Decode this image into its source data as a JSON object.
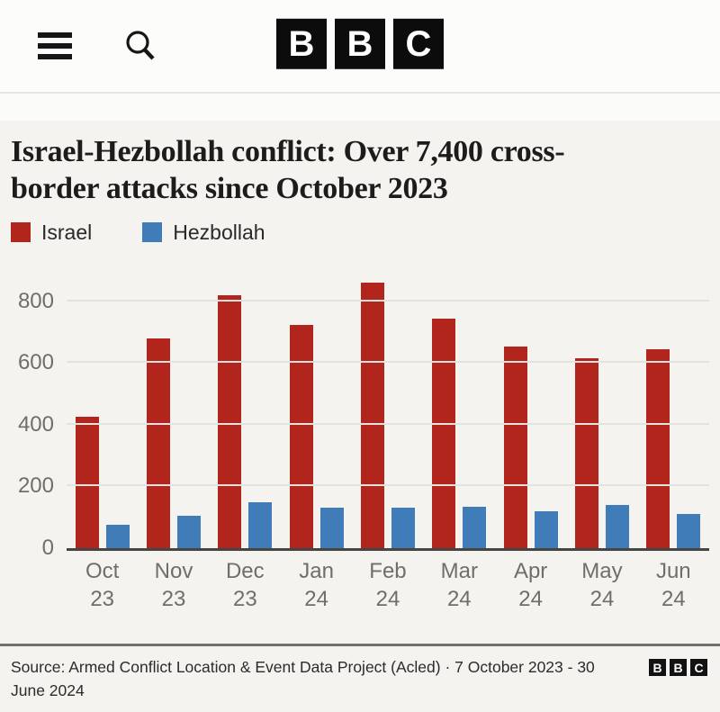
{
  "header": {
    "menu_icon": "hamburger-menu",
    "search_icon": "search-magnifier",
    "logo_letters": [
      "B",
      "B",
      "C"
    ]
  },
  "article": {
    "title": "Israel-Hezbollah conflict: Over 7,400 cross-border attacks since October 2023"
  },
  "legend": [
    {
      "label": "Israel",
      "color": "#b2251d"
    },
    {
      "label": "Hezbollah",
      "color": "#3f7cb8"
    }
  ],
  "chart_data": {
    "type": "bar",
    "title": "Israel-Hezbollah conflict: Over 7,400 cross-border attacks since October 2023",
    "categories": [
      "Oct 23",
      "Nov 23",
      "Dec 23",
      "Jan 24",
      "Feb 24",
      "Mar 24",
      "Apr 24",
      "May 24",
      "Jun 24"
    ],
    "series": [
      {
        "name": "Israel",
        "color": "#b2251d",
        "values": [
          425,
          680,
          820,
          725,
          860,
          745,
          655,
          615,
          645
        ]
      },
      {
        "name": "Hezbollah",
        "color": "#3f7cb8",
        "values": [
          75,
          105,
          150,
          130,
          130,
          135,
          120,
          140,
          110
        ]
      }
    ],
    "xlabel": "",
    "ylabel": "",
    "yticks": [
      0,
      200,
      400,
      600,
      800
    ],
    "ylim": [
      0,
      940
    ],
    "grid": true,
    "legend_position": "top-left"
  },
  "footer": {
    "source": "Source: Armed Conflict Location & Event Data Project (Acled) · 7 October 2023 - 30 June 2024",
    "logo_letters": [
      "B",
      "B",
      "C"
    ]
  }
}
